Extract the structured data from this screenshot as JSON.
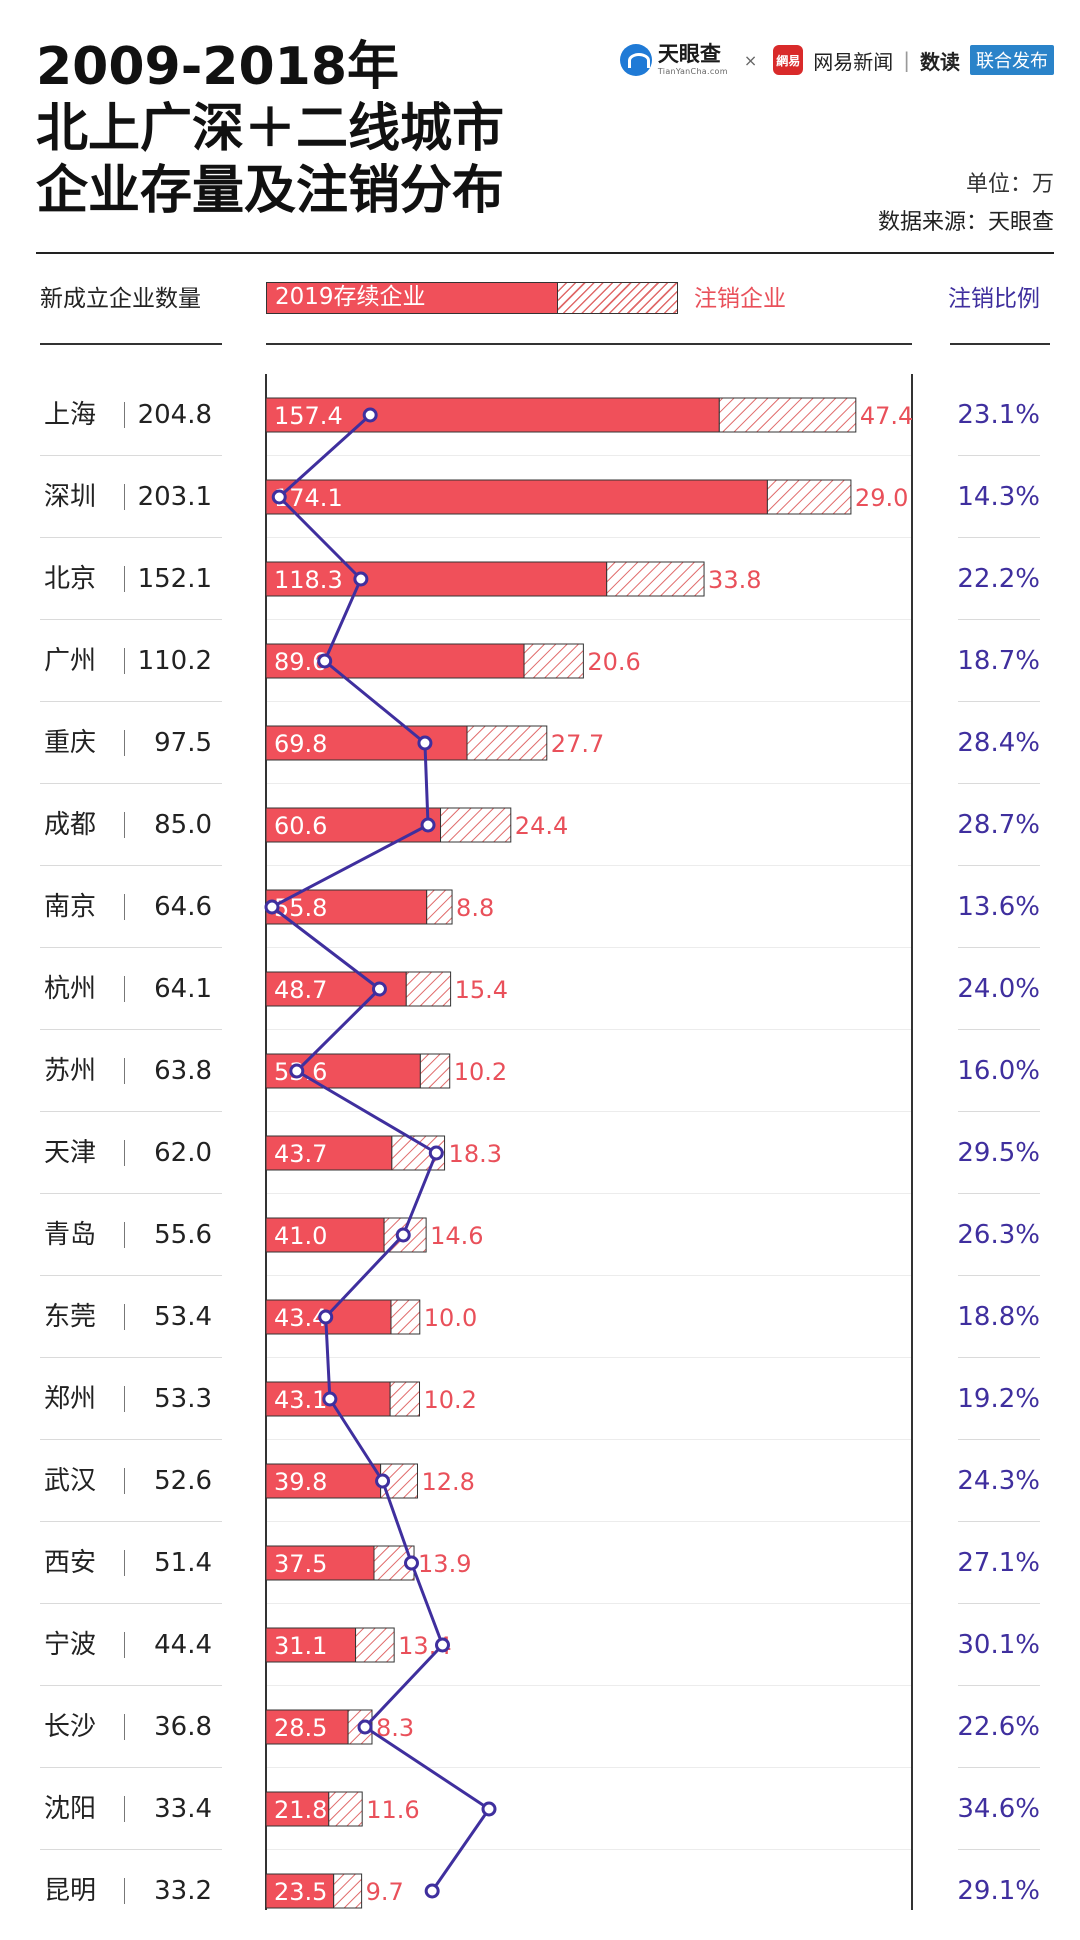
{
  "header": {
    "title_lines": [
      "2009-2018年",
      "北上广深＋二线城市",
      "企业存量及注销分布"
    ],
    "unit": "单位：万",
    "source": "数据来源：天眼查"
  },
  "logos": {
    "tianyancha": "天眼查",
    "tianyancha_url": "TianYanCha.com",
    "separator": "×",
    "netease_badge": "網易",
    "netease": "网易新闻",
    "divider": "|",
    "shudu": "数读",
    "publish": "联合发布"
  },
  "legend": {
    "new_label": "新成立企业数量",
    "survive_label": "2019存续企业",
    "cancel_label": "注销企业",
    "ratio_label": "注销比例"
  },
  "colors": {
    "survive": "#f0505a",
    "cancel_hatch": "#e06a6a",
    "cancel_text": "#e9505a",
    "ratio": "#3f2f9e"
  },
  "chart_data": {
    "type": "bar",
    "orientation": "horizontal",
    "stacked": true,
    "categories": [
      "上海",
      "深圳",
      "北京",
      "广州",
      "重庆",
      "成都",
      "南京",
      "杭州",
      "苏州",
      "天津",
      "青岛",
      "东莞",
      "郑州",
      "武汉",
      "西安",
      "宁波",
      "长沙",
      "沈阳",
      "昆明"
    ],
    "series": [
      {
        "name": "新成立企业数量",
        "values": [
          204.8,
          203.1,
          152.1,
          110.2,
          97.5,
          85.0,
          64.6,
          64.1,
          63.8,
          62.0,
          55.6,
          53.4,
          53.3,
          52.6,
          51.4,
          44.4,
          36.8,
          33.4,
          33.2
        ]
      },
      {
        "name": "2019存续企业",
        "values": [
          157.4,
          174.1,
          118.3,
          89.6,
          69.8,
          60.6,
          55.8,
          48.7,
          53.6,
          43.7,
          41.0,
          43.4,
          43.1,
          39.8,
          37.5,
          31.1,
          28.5,
          21.8,
          23.5
        ]
      },
      {
        "name": "注销企业",
        "values": [
          47.4,
          29.0,
          33.8,
          20.6,
          27.7,
          24.4,
          8.8,
          15.4,
          10.2,
          18.3,
          14.6,
          10.0,
          10.2,
          12.8,
          13.9,
          13.4,
          8.3,
          11.6,
          9.7
        ]
      },
      {
        "name": "注销比例",
        "values": [
          "23.1%",
          "14.3%",
          "22.2%",
          "18.7%",
          "28.4%",
          "28.7%",
          "13.6%",
          "24.0%",
          "16.0%",
          "29.5%",
          "26.3%",
          "18.8%",
          "19.2%",
          "24.3%",
          "27.1%",
          "30.1%",
          "22.6%",
          "34.6%",
          "29.1%"
        ]
      }
    ],
    "unit": "万"
  }
}
